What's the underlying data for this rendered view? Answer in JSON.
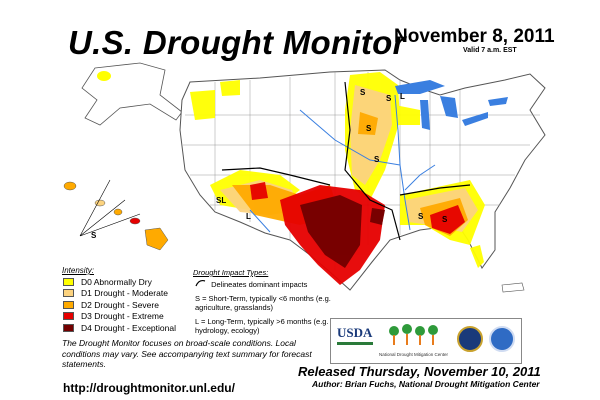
{
  "title": "U.S. Drought Monitor",
  "date": "November 8, 2011",
  "valid": "Valid 7 a.m. EST",
  "legend": {
    "title": "Intensity:",
    "items": [
      {
        "label": "D0 Abnormally Dry",
        "color": "#ffff00"
      },
      {
        "label": "D1 Drought - Moderate",
        "color": "#fcd37f"
      },
      {
        "label": "D2 Drought - Severe",
        "color": "#ffaa00"
      },
      {
        "label": "D3 Drought - Extreme",
        "color": "#e60000"
      },
      {
        "label": "D4 Drought - Exceptional",
        "color": "#730000"
      }
    ]
  },
  "impact": {
    "title": "Drought Impact Types:",
    "delineates": "Delineates dominant impacts",
    "short_term": "S = Short-Term, typically <6 months (e.g. agriculture, grasslands)",
    "long_term": "L = Long-Term, typically >6 months (e.g. hydrology, ecology)"
  },
  "note": "The Drought Monitor focuses on broad-scale conditions. Local conditions may vary. See accompanying text summary for forecast statements.",
  "url": "http://droughtmonitor.unl.edu/",
  "released": "Released Thursday, November 10, 2011",
  "author": "Author: Brian Fuchs, National Drought Mitigation Center",
  "logos": {
    "usda": "USDA",
    "ndmc": "National Drought Mitigation Center",
    "doc": "DOC",
    "noaa": "NOAA"
  },
  "map_labels": {
    "s": "S",
    "l": "L",
    "sl": "SL"
  },
  "colors": {
    "water": "#3a7fe0",
    "land": "#ffffff",
    "border": "#555555"
  }
}
